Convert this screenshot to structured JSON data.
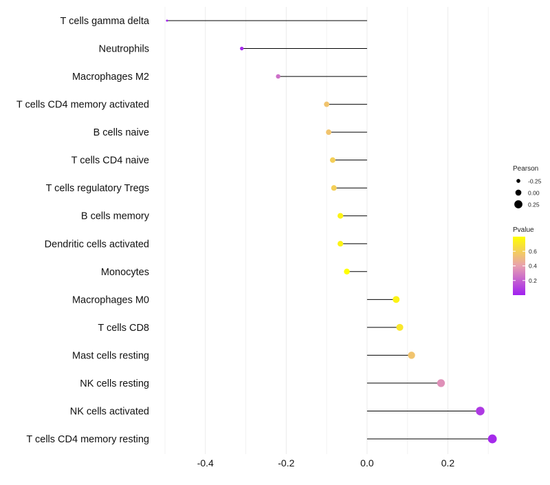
{
  "chart_data": {
    "type": "lollipop",
    "title": "",
    "xlabel": "",
    "ylabel": "",
    "xlim": [
      -0.5,
      0.32
    ],
    "xticks": [
      -0.4,
      -0.2,
      0.0,
      0.2
    ],
    "xtick_labels": [
      "-0.4",
      "-0.2",
      "0.0",
      "0.2"
    ],
    "grid": true,
    "legend_position": "right",
    "categories": [
      "T cells gamma delta",
      "Neutrophils",
      "Macrophages M2",
      "T cells CD4 memory activated",
      "B cells naive",
      "T cells CD4 naive",
      "T cells regulatory  Tregs ",
      "B cells memory",
      "Dendritic cells activated",
      "Monocytes",
      "Macrophages M0",
      "T cells CD8",
      "Mast cells resting",
      "NK cells resting",
      "NK cells activated",
      "T cells CD4 memory resting"
    ],
    "series": [
      {
        "name": "Pearson",
        "values": [
          -0.495,
          -0.31,
          -0.22,
          -0.1,
          -0.095,
          -0.085,
          -0.082,
          -0.066,
          -0.066,
          -0.05,
          0.072,
          0.081,
          0.11,
          0.183,
          0.28,
          0.31
        ]
      },
      {
        "name": "Pvalue",
        "values": [
          0.01,
          0.03,
          0.25,
          0.55,
          0.55,
          0.6,
          0.6,
          0.75,
          0.75,
          0.8,
          0.75,
          0.7,
          0.55,
          0.35,
          0.08,
          0.03
        ]
      }
    ],
    "size_legend": {
      "title": "Pearson",
      "labels": [
        "-0.25",
        "0.00",
        "0.25"
      ],
      "values": [
        -0.25,
        0.0,
        0.25
      ]
    },
    "color_legend": {
      "title": "Pvalue",
      "labels": [
        "0.6",
        "0.4",
        "0.2"
      ],
      "values": [
        0.6,
        0.4,
        0.2
      ],
      "range": [
        0.0,
        0.8
      ],
      "low_color": "#a020f0",
      "mid_color": "#e8a0b0",
      "high_color": "#ffff00"
    }
  }
}
